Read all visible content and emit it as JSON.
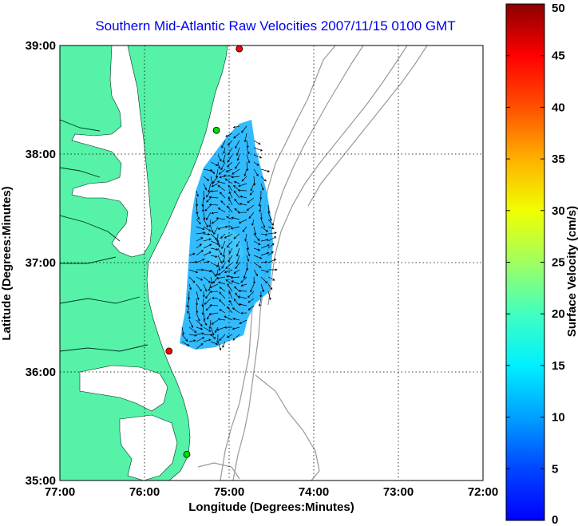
{
  "title": "Southern Mid-Atlantic Raw Velocities 2007/11/15 0100 GMT",
  "xlabel": "Longitude (Degrees:Minutes)",
  "ylabel": "Latitude (Degrees:Minutes)",
  "x_ticks": [
    "77:00",
    "76:00",
    "75:00",
    "74:00",
    "73:00",
    "72:00"
  ],
  "y_ticks": [
    "39:00",
    "38:00",
    "37:00",
    "36:00",
    "35:00"
  ],
  "map_extent": {
    "lon": [
      -77,
      -72
    ],
    "lat": [
      35,
      39
    ]
  },
  "colors": {
    "land": "#55f2a8",
    "water": "#ffffff",
    "bathymetry": "#999999",
    "title": "#0000ee",
    "site_active": "#00dd00",
    "site_inactive": "#ff0000"
  },
  "colorbar": {
    "label": "Surface Velocity (cm/s)",
    "ticks": [
      "0",
      "5",
      "10",
      "15",
      "20",
      "25",
      "30",
      "35",
      "40",
      "45",
      "50"
    ],
    "range": [
      0,
      50
    ],
    "colormap": "jet"
  },
  "sites": [
    {
      "state": "inactive",
      "lon": -74.88,
      "lat": 38.97
    },
    {
      "state": "active",
      "lon": -75.15,
      "lat": 38.22
    },
    {
      "state": "inactive",
      "lon": -75.71,
      "lat": 36.19
    },
    {
      "state": "active",
      "lon": -75.5,
      "lat": 35.24
    }
  ]
}
